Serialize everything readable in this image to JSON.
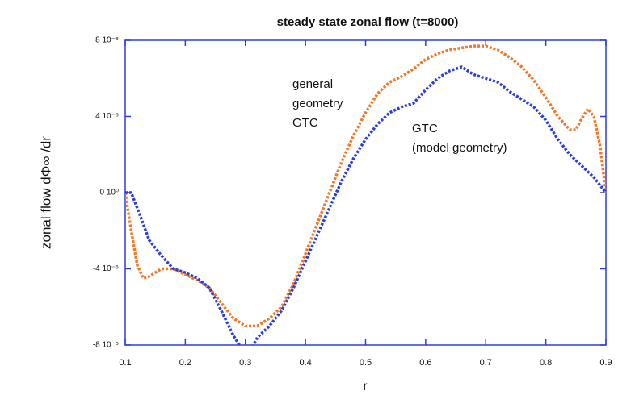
{
  "chart_data": {
    "type": "line",
    "title": "steady state zonal flow (t=8000)",
    "x_label": "r",
    "y_label": "zonal flow  dΦ∞ /dr",
    "xlim": [
      0.1,
      0.9
    ],
    "xticks": [
      0.1,
      0.2,
      0.3,
      0.4,
      0.5,
      0.6,
      0.7,
      0.8,
      0.9
    ],
    "ylim": [
      -8e-05,
      8e-05
    ],
    "yticks": [
      {
        "value": -8e-05,
        "label": "-8 10⁻⁵"
      },
      {
        "value": -4e-05,
        "label": "-4 10⁻⁵"
      },
      {
        "value": 0,
        "label": "0 10⁰"
      },
      {
        "value": 4e-05,
        "label": "4 10⁻⁵"
      },
      {
        "value": 8e-05,
        "label": "8 10⁻⁵"
      }
    ],
    "series": [
      {
        "name": "general geometry GTC",
        "color": "#f07828",
        "x": [
          0.1,
          0.11,
          0.12,
          0.13,
          0.14,
          0.16,
          0.18,
          0.2,
          0.22,
          0.24,
          0.26,
          0.28,
          0.3,
          0.32,
          0.34,
          0.36,
          0.38,
          0.4,
          0.42,
          0.44,
          0.46,
          0.48,
          0.5,
          0.52,
          0.54,
          0.56,
          0.58,
          0.6,
          0.62,
          0.64,
          0.66,
          0.68,
          0.7,
          0.72,
          0.74,
          0.76,
          0.78,
          0.8,
          0.82,
          0.84,
          0.85,
          0.86,
          0.87,
          0.88,
          0.89,
          0.9
        ],
        "values": [
          0,
          -2e-05,
          -3.8e-05,
          -4.5e-05,
          -4.4e-05,
          -4e-05,
          -4e-05,
          -4.3e-05,
          -4.6e-05,
          -5e-05,
          -5.8e-05,
          -6.6e-05,
          -7e-05,
          -7e-05,
          -6.6e-05,
          -6e-05,
          -4.8e-05,
          -3.2e-05,
          -1.6e-05,
          0,
          1.6e-05,
          3e-05,
          4.2e-05,
          5.2e-05,
          5.8e-05,
          6.1e-05,
          6.5e-05,
          7e-05,
          7.3e-05,
          7.5e-05,
          7.6e-05,
          7.7e-05,
          7.7e-05,
          7.5e-05,
          7.1e-05,
          6.6e-05,
          5.9e-05,
          5e-05,
          4e-05,
          3.3e-05,
          3.3e-05,
          3.9e-05,
          4.4e-05,
          4e-05,
          2.5e-05,
          0
        ]
      },
      {
        "name": "GTC (model geometry)",
        "color": "#2a3ee0",
        "x": [
          0.1,
          0.11,
          0.12,
          0.14,
          0.16,
          0.18,
          0.2,
          0.22,
          0.24,
          0.26,
          0.28,
          0.29,
          0.3,
          0.31,
          0.32,
          0.34,
          0.36,
          0.38,
          0.4,
          0.42,
          0.44,
          0.46,
          0.48,
          0.5,
          0.52,
          0.54,
          0.56,
          0.58,
          0.6,
          0.62,
          0.64,
          0.66,
          0.68,
          0.7,
          0.72,
          0.74,
          0.76,
          0.78,
          0.8,
          0.82,
          0.84,
          0.86,
          0.88,
          0.9
        ],
        "values": [
          0,
          0,
          -8e-06,
          -2.5e-05,
          -3.3e-05,
          -4e-05,
          -4.2e-05,
          -4.5e-05,
          -5e-05,
          -6.2e-05,
          -7.5e-05,
          -8e-05,
          -8.5e-05,
          -8.2e-05,
          -7.6e-05,
          -7e-05,
          -6.2e-05,
          -5e-05,
          -3.6e-05,
          -2.2e-05,
          -8e-06,
          6e-06,
          1.8e-05,
          2.8e-05,
          3.6e-05,
          4.2e-05,
          4.5e-05,
          4.7e-05,
          5.4e-05,
          6e-05,
          6.4e-05,
          6.6e-05,
          6.2e-05,
          6e-05,
          5.8e-05,
          5.3e-05,
          4.9e-05,
          4.5e-05,
          3.8e-05,
          2.8e-05,
          2e-05,
          1.4e-05,
          8e-06,
          0
        ]
      }
    ],
    "annotations": [
      {
        "lines": [
          "general",
          "geometry",
          "GTC"
        ],
        "color": "#e8281e"
      },
      {
        "lines": [
          "GTC",
          "(model geometry)"
        ],
        "color": "#2a3ee0"
      }
    ]
  }
}
